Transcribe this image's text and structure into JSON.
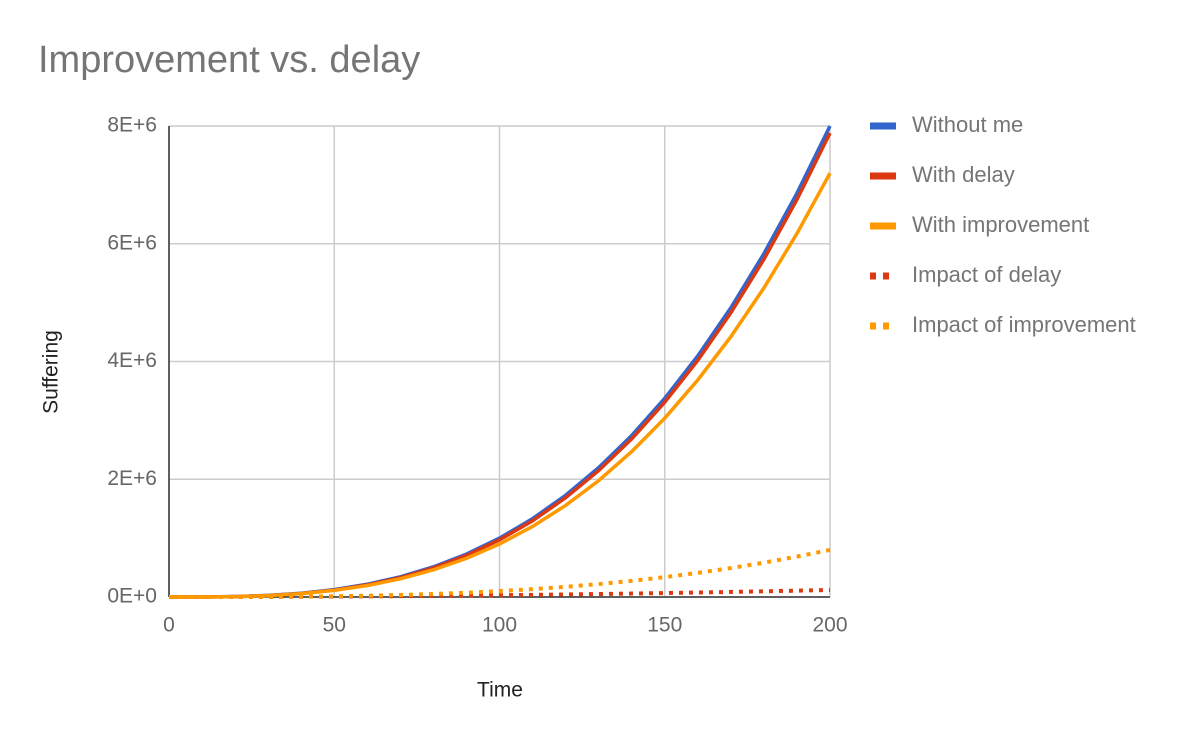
{
  "chart_data": {
    "type": "line",
    "title": "Improvement vs. delay",
    "x_label": "Time",
    "y_label": "Suffering",
    "x": [
      0,
      10,
      20,
      30,
      40,
      50,
      60,
      70,
      80,
      90,
      100,
      110,
      120,
      130,
      140,
      150,
      160,
      170,
      180,
      190,
      200
    ],
    "series": [
      {
        "name": "Without me",
        "color": "#3366cc",
        "style": "solid",
        "values": [
          0,
          1000,
          8000,
          27000,
          64000,
          125000,
          216000,
          343000,
          512000,
          729000,
          1000000,
          1331000,
          1728000,
          2197000,
          2744000,
          3375000,
          4096000,
          4913000,
          5832000,
          6859000,
          8000000
        ]
      },
      {
        "name": "With delay",
        "color": "#dc3912",
        "style": "solid",
        "values": [
          0,
          729,
          6859,
          24389,
          59319,
          117649,
          205379,
          328509,
          493039,
          704969,
          970299,
          1295029,
          1685159,
          2146689,
          2685619,
          3307949,
          4019679,
          4826809,
          5735339,
          6751269,
          7880599
        ]
      },
      {
        "name": "With improvement",
        "color": "#ff9900",
        "style": "solid",
        "values": [
          0,
          900,
          7200,
          24300,
          57600,
          112500,
          194400,
          308700,
          460800,
          656100,
          900000,
          1197900,
          1555200,
          1977300,
          2469600,
          3037500,
          3686400,
          4421700,
          5248800,
          6173100,
          7200000
        ]
      },
      {
        "name": "Impact of delay",
        "color": "#dc3912",
        "style": "dotted",
        "values": [
          0,
          271,
          1141,
          2611,
          4681,
          7351,
          10621,
          14491,
          18961,
          24031,
          29701,
          35971,
          42841,
          50311,
          58381,
          67051,
          76321,
          86191,
          96661,
          107731,
          119401
        ]
      },
      {
        "name": "Impact of improvement",
        "color": "#ff9900",
        "style": "dotted",
        "values": [
          0,
          100,
          800,
          2700,
          6400,
          12500,
          21600,
          34300,
          51200,
          72900,
          100000,
          133100,
          172800,
          219700,
          274400,
          337500,
          409600,
          491300,
          583200,
          685900,
          800000
        ]
      }
    ],
    "xlim": [
      0,
      200
    ],
    "xticks": [
      0,
      50,
      100,
      150,
      200
    ],
    "ylim": [
      0,
      8000000
    ],
    "yticks": [
      {
        "value": 0,
        "label": "0E+0"
      },
      {
        "value": 2000000,
        "label": "2E+6"
      },
      {
        "value": 4000000,
        "label": "4E+6"
      },
      {
        "value": 6000000,
        "label": "6E+6"
      },
      {
        "value": 8000000,
        "label": "8E+6"
      }
    ],
    "grid": true,
    "legend": "right"
  }
}
